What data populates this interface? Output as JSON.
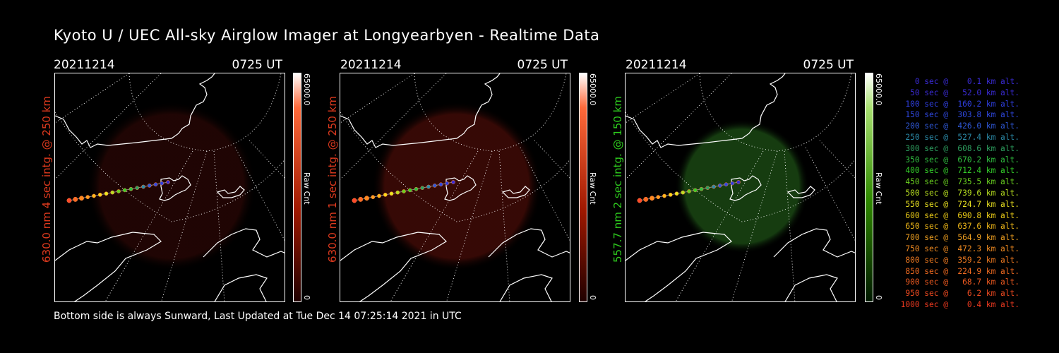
{
  "header": {
    "title": "Kyoto U / UEC All-sky Airglow Imager at Longyearbyen - Realtime Data"
  },
  "footer": {
    "text": "Bottom side is always Sunward, Last Updated at Tue Dec 14 07:25:14 2021 in UTC"
  },
  "panels": [
    {
      "date": "20211214",
      "time": "0725 UT",
      "ylabel": "630.0 nm 4 sec intg. @ 250 km",
      "label_color": "#e03a1e",
      "colorbar": {
        "max": "65000.0",
        "min": "0",
        "unit": "Raw Cnt",
        "color": "#ff3a00"
      }
    },
    {
      "date": "20211214",
      "time": "0725 UT",
      "ylabel": "630.0 nm 1 sec intg. @ 250 km",
      "label_color": "#e03a1e",
      "colorbar": {
        "max": "65000.0",
        "min": "0",
        "unit": "Raw Cnt",
        "color": "#ff3a00"
      }
    },
    {
      "date": "20211214",
      "time": "0725 UT",
      "ylabel": "557.7 nm 2 sec intg. @ 150 km",
      "label_color": "#2ecc1e",
      "colorbar": {
        "max": "65000.0",
        "min": "0",
        "unit": "Raw Cnt",
        "color": "#1f9d00"
      }
    }
  ],
  "legend": [
    {
      "text": "   0 sec @    0.1 km alt.",
      "color": "#3a2bd6"
    },
    {
      "text": "  50 sec @   52.0 km alt.",
      "color": "#3a2bd6"
    },
    {
      "text": " 100 sec @  160.2 km alt.",
      "color": "#2f3fe0"
    },
    {
      "text": " 150 sec @  303.8 km alt.",
      "color": "#2f48e0"
    },
    {
      "text": " 200 sec @  426.0 km alt.",
      "color": "#2f58d8"
    },
    {
      "text": " 250 sec @  527.4 km alt.",
      "color": "#2b8aa8"
    },
    {
      "text": " 300 sec @  608.6 km alt.",
      "color": "#2ea060"
    },
    {
      "text": " 350 sec @  670.2 km alt.",
      "color": "#30c040"
    },
    {
      "text": " 400 sec @  712.4 km alt.",
      "color": "#34d02a"
    },
    {
      "text": " 450 sec @  735.5 km alt.",
      "color": "#6ad020"
    },
    {
      "text": " 500 sec @  739.6 km alt.",
      "color": "#b8e020"
    },
    {
      "text": " 550 sec @  724.7 km alt.",
      "color": "#e8e020"
    },
    {
      "text": " 600 sec @  690.8 km alt.",
      "color": "#f0d018"
    },
    {
      "text": " 650 sec @  637.6 km alt.",
      "color": "#f0b818"
    },
    {
      "text": " 700 sec @  564.9 km alt.",
      "color": "#f0a020"
    },
    {
      "text": " 750 sec @  472.3 km alt.",
      "color": "#f08a20"
    },
    {
      "text": " 800 sec @  359.2 km alt.",
      "color": "#f07a20"
    },
    {
      "text": " 850 sec @  224.9 km alt.",
      "color": "#f06a20"
    },
    {
      "text": " 900 sec @   68.7 km alt.",
      "color": "#f05a20"
    },
    {
      "text": " 950 sec @    6.2 km alt.",
      "color": "#f04a20"
    },
    {
      "text": "1000 sec @    0.4 km alt.",
      "color": "#f03a20"
    }
  ],
  "trajectory_colors": [
    "#ff4a2a",
    "#ff6a22",
    "#ff8a20",
    "#ffa020",
    "#ffbb18",
    "#ffd818",
    "#e8e820",
    "#b8e020",
    "#6ad020",
    "#34d02a",
    "#30c040",
    "#2ea060",
    "#2b8aa8",
    "#2f58d8",
    "#2f48e0",
    "#2f3fe0",
    "#3a2bd6"
  ]
}
